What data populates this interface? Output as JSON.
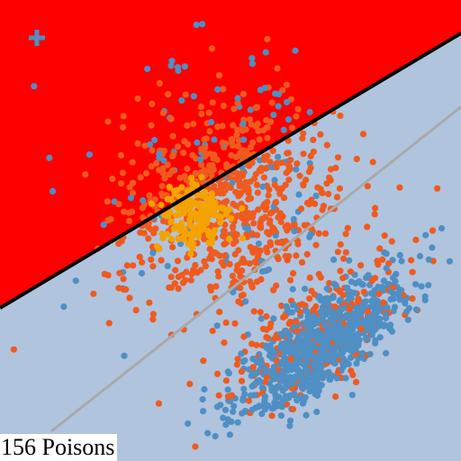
{
  "caption": "156 Poisons",
  "chart_data": {
    "type": "scatter",
    "title": "",
    "xlabel": "",
    "ylabel": "",
    "xlim": [
      0,
      100
    ],
    "ylim": [
      0,
      100
    ],
    "grid": false,
    "colors": {
      "background": "#b0c4de",
      "decision_region": "#ff0000",
      "blue_points": "#4f8fc4",
      "orange_points": "#f05a1e",
      "poison_points": "#f4a300",
      "target_marker": "#4f8fc4",
      "decision_boundary": "#000000",
      "reference_boundary": "#a9a9a9"
    },
    "decision_boundary": {
      "points": [
        [
          0,
          33.2
        ],
        [
          100,
          92.8
        ]
      ]
    },
    "reference_boundary": {
      "points": [
        [
          11.1,
          6.4
        ],
        [
          100,
          76.8
        ]
      ]
    },
    "target_point": {
      "x": 8,
      "y": 91.8
    },
    "series": [
      {
        "cluster_center": [
          70,
          26
        ],
        "major_axis_direction": [
          0.78,
          0.62
        ],
        "major_std": 11,
        "minor_std": 4,
        "count": 900,
        "color": "#4f8fc4"
      },
      {
        "cluster_center": [
          50,
          55
        ],
        "std": [
          12,
          11
        ],
        "count": 700,
        "color": "#f05a1e"
      },
      {
        "cluster_center": [
          68,
          27
        ],
        "major_axis_direction": [
          0.78,
          0.62
        ],
        "major_std": 13,
        "minor_std": 6,
        "count": 220,
        "color": "#f05a1e"
      },
      {
        "cluster_center": [
          42,
          53
        ],
        "std": [
          4,
          4
        ],
        "count": 156,
        "color": "#f4a300"
      },
      {
        "cluster_center": [
          48,
          60
        ],
        "std": [
          15,
          16
        ],
        "count": 120,
        "color": "#4f8fc4"
      }
    ]
  }
}
